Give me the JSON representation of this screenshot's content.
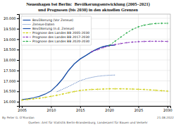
{
  "chart_data": {
    "type": "line",
    "title": "Neuenhagen bei Berlin:  Bevölkerungsentwicklung (2005–2021)",
    "subtitle": "und Prognosen (bis 2030) in den aktuellen Grenzen",
    "xlim": [
      2004.5,
      2030.5
    ],
    "xticks": [
      2005,
      2010,
      2015,
      2020,
      2025,
      2030
    ],
    "ylim": [
      15800,
      20200
    ],
    "yticks": [
      {
        "value": 16000,
        "label": "16.000"
      },
      {
        "value": 16500,
        "label": "16.500"
      },
      {
        "value": 17000,
        "label": "17.000"
      },
      {
        "value": 17500,
        "label": "17.500"
      },
      {
        "value": 18000,
        "label": "18.000"
      },
      {
        "value": 18500,
        "label": "18.500"
      },
      {
        "value": 19000,
        "label": "19.000"
      },
      {
        "value": 19500,
        "label": "19.500"
      },
      {
        "value": 20000,
        "label": "20.000"
      }
    ],
    "grid": true,
    "legend": "upper left",
    "series": [
      {
        "name": "Bevölkerung (Vor Zensus)",
        "color": "#2255aa",
        "line_style": "solid",
        "x": [
          2005,
          2006,
          2007,
          2008,
          2009,
          2010,
          2011,
          2012,
          2013,
          2014,
          2015,
          2016,
          2017,
          2018,
          2019,
          2020,
          2021
        ],
        "values": [
          16100,
          16140,
          16190,
          16260,
          16370,
          16520,
          16780,
          17100,
          17500,
          17820,
          18050,
          18220,
          18400,
          18540,
          18650,
          18700,
          18720
        ]
      },
      {
        "name": "Zensus-Daten",
        "color": "#2255aa",
        "line_style": "dotted",
        "x": [
          2011,
          2012,
          2013,
          2014,
          2015,
          2016,
          2017,
          2018,
          2019,
          2020,
          2021
        ],
        "values": [
          16480,
          16600,
          16730,
          16870,
          17010,
          17100,
          17170,
          17220,
          17250,
          17270,
          17280
        ]
      },
      {
        "name": "Bevölkerung (n.d. Zensus)",
        "color": "#2255aa",
        "line_style": "solid",
        "x": [
          2011,
          2012,
          2013,
          2014,
          2015,
          2016,
          2017,
          2018,
          2019,
          2020,
          2021
        ],
        "values": [
          16780,
          17100,
          17500,
          17820,
          18050,
          18220,
          18400,
          18540,
          18650,
          18700,
          18720
        ]
      },
      {
        "name": "Prognose des Landes BB 2005-2030",
        "color": "#cccc00",
        "line_style": "dashed",
        "marker": "plus",
        "x": [
          2005,
          2006,
          2007,
          2008,
          2009,
          2010,
          2011,
          2012,
          2013,
          2014,
          2015,
          2016,
          2017,
          2018,
          2019,
          2020,
          2021,
          2022,
          2023,
          2024,
          2025,
          2026,
          2027,
          2028,
          2029,
          2030
        ],
        "values": [
          16080,
          16110,
          16140,
          16170,
          16210,
          16260,
          16310,
          16370,
          16430,
          16490,
          16540,
          16570,
          16590,
          16600,
          16610,
          16620,
          16620,
          16620,
          16615,
          16610,
          16600,
          16590,
          16570,
          16550,
          16530,
          16510
        ]
      },
      {
        "name": "Prognose des Landes BB 2017-2030",
        "color": "#8833bb",
        "line_style": "dashed",
        "marker": "plus",
        "x": [
          2017,
          2018,
          2019,
          2020,
          2021,
          2022,
          2023,
          2024,
          2025,
          2026,
          2027,
          2028,
          2029,
          2030
        ],
        "values": [
          18400,
          18500,
          18600,
          18680,
          18740,
          18790,
          18830,
          18860,
          18880,
          18890,
          18900,
          18900,
          18900,
          18890
        ]
      },
      {
        "name": "Prognose des Landes BB 2020-2030",
        "color": "#22aa44",
        "line_style": "dashed",
        "marker": "plus",
        "x": [
          2020,
          2021,
          2022,
          2023,
          2024,
          2025,
          2026,
          2027,
          2028,
          2029,
          2030
        ],
        "values": [
          18700,
          18900,
          19100,
          19300,
          19470,
          19590,
          19670,
          19720,
          19750,
          19760,
          19760
        ]
      }
    ],
    "annotations": [
      "By Peter G. O’Riordan",
      "Quellen: Amt für Statistik Berlin-Brandenburg, Landesamt für Bauen und Verkehr",
      "21.08.2022"
    ]
  }
}
